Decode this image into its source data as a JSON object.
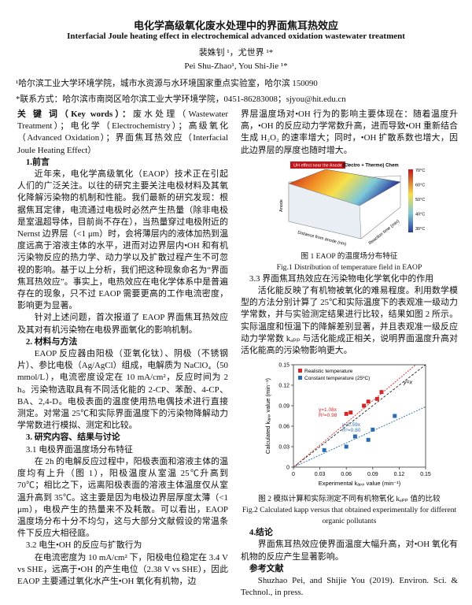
{
  "title": "电化学高级氧化废水处理中的界面焦耳热效应",
  "title_en": "Interfacial Joule heating effect in electrochemical advanced oxidation wastewater treatment",
  "authors": "裴姝钊 ¹，尤世界 ¹*",
  "authors_en": "Pei Shu-Zhao¹, You Shi-Jie ¹*",
  "affiliation": "¹哈尔滨工业大学环境学院，城市水资源与水环境国家重点实验室，哈尔滨 150090",
  "contact": "*联系方式：哈尔滨市南岗区哈尔滨工业大学环境学院，0451-86283008；sjyou@hit.edu.cn",
  "left_column": [
    {
      "label": "关 键 词（Key words）：",
      "text": "废水处理（Wastewater Treatment）；电化学（Electrochemistry）；高级氧化（Advanced Oxidation）；界面焦耳热效应（Interfacial Joule Heating Effect）"
    },
    {
      "heading": "1.前言"
    },
    {
      "paragraph": "近年来，电化学高级氧化（EAOP）技术正在引起人们的广泛关注。以往的研究主要关注电极材料及其氧化降解污染物的机制和性能。我们最新的研究发现：根据焦耳定律，电流通过电极时必然产生热量（除非电极是室温超导体，目前尚不存在），当热量穿过电极附近的 Nernst 边界层（<1 μm）时，会将薄层内的液体加热到温度远高于溶液主体的水平，进而对边界层内•OH 和有机污染物反应的热力学、动力学以及扩散过程产生不可忽视的影响。基于以上分析，我们把这种现象命名为“界面焦耳热效应”。事实上，电热效应在电化学体系中是普遍存在的现象，只不过 EAOP 需要更高的工作电流密度，影响更为显著。"
    },
    {
      "paragraph": "针对上述问题，首次报道了 EAOP 界面焦耳热效应及其对有机污染物在电极界面氧化的影响机制。"
    },
    {
      "heading": "2. 材料与方法"
    },
    {
      "paragraph": "EAOP 反应器由阳极（亚氧化钛）、阴极（不锈钢片）、参比电极（Ag/AgCl）组成，电解质为 NaClO₄（50 mmol/L），电流密度设定在 10 mA/cm²，反应时间为 2 h。污染物选取具有不同活化能的 2-CP、苯酚、4-CP、BA、2,4-D。电极表面的温度使用热电偶技术进行直接测定。对常温 25℃和实际界面温度下的污染物降解动力学常数进行模拟、测定和比较。"
    },
    {
      "heading": "3. 研究内容、结果与讨论"
    },
    {
      "subheading": "3.1 电极界面温度场分布特征"
    },
    {
      "paragraph": "在 2h 的电解反应过程中，阳极表面和溶液主体的温度均有上升（图 1），阳极温度从室温 25℃升高到 70℃；相比之下，远离阳极表面的溶液主体温度仅从室温升高到 35℃。这主要是因为电极边界层厚度太薄（<1 μm），电极产生的热量来不及耗散。可以看出，EAOP 温度场分布十分不均匀，这与大部分文献假设的常温条件下反应大相径庭。"
    },
    {
      "subheading": "3.2 电生•OH 的反应与扩散行为"
    },
    {
      "paragraph": "在电流密度为 10 mA/cm² 下，阳极电位稳定在 3.4 V vs SHE，远高于•OH 的产生电位（2.38 V vs SHE），因此 EAOP 主要通过氧化水产生•OH 氧化有机物，边"
    }
  ],
  "right_column": [
    {
      "paragraph": "界层温度场对•OH 行为的影响主要体现在：随着温度升高，•OH 的反应动力学常数升高，进而导致•OH 重新结合生成 H₂O₂ 的速率增大；同时，•OH 扩散系数也增大，因此边界层的厚度也随时增大。"
    },
    {
      "image": {
        "badge": "UH effect near the Anode",
        "corner": "(Electro + Thermo) Chem",
        "side": "Anode",
        "x_title": "Distance from anode (nm)",
        "y_title": "Reaction time (min)",
        "scale": [
          "70°C",
          "60°C",
          "50°C",
          "40°C",
          "30°C"
        ]
      },
      "caption": "图 1 EAOP 的温度场分布特征",
      "caption_en": "Fig.1 Distribution of temperature field in EAOP"
    },
    {
      "subheading": "3.3 界面焦耳热效应在污染物电化学氧化中的作用"
    },
    {
      "paragraph": "活化能反映了有机物被氧化的难易程度。利用数学模型的方法分别计算了 25℃和实际温度下的表观准一级动力学常数，并与实验测定结果进行比较，结果如图 2 所示。实际温度和恒温下的降解差别显著，并且表观准一级反应动力学常数 kₐₚₚ 与活化能成正相关，说明界面温度升高对活化能高的污染物影响更大。"
    },
    {
      "chart": {
        "type": "scatter",
        "x_label": "Experimental kₐₚₚ value (min⁻¹)",
        "y_label": "Calculated kₐₚₚ value (min⁻¹)",
        "xlim": [
          0,
          0.15
        ],
        "ylim": [
          0,
          0.15
        ],
        "xticks": [
          0,
          0.03,
          0.06,
          0.09,
          0.12,
          0.15
        ],
        "yticks": [
          0,
          0.03,
          0.06,
          0.09,
          0.12,
          0.15
        ],
        "series": [
          {
            "name": "Realistic temperature",
            "color": "#d62728",
            "x": [
              0.06,
              0.065,
              0.08,
              0.085,
              0.095,
              0.1
            ],
            "values": [
              0.078,
              0.08,
              0.09,
              0.096,
              0.1,
              0.11
            ],
            "fit": {
              "slope": 1.08,
              "equation": "y=1.08x",
              "r2": "R²=0.98"
            }
          },
          {
            "name": "Constant temperature (25ºC)",
            "color": "#2b6cb0",
            "x": [
              0.035,
              0.06,
              0.07,
              0.085,
              0.09,
              0.115
            ],
            "values": [
              0.025,
              0.03,
              0.045,
              0.04,
              0.055,
              0.075
            ],
            "fit": {
              "slope": 0.59,
              "equation": "y=0.59x",
              "r2": "R²=0.80"
            }
          }
        ],
        "reference": {
          "slope": 1,
          "label": "y=x"
        }
      },
      "caption": "图 2 模拟计算和实际测定不同有机物氧化 kₐₚₚ 值的比较",
      "caption_en": "Fig.2 Calculated kapp versus that obtained experimentally for different organic pollutants"
    },
    {
      "heading": "4.结论"
    },
    {
      "paragraph": "界面焦耳热效应使界面温度大幅升高，对•OH 氧化有机物的反应产生显著影响。"
    },
    {
      "heading": "参考文献"
    },
    {
      "paragraph": "Shuzhao Pei, and Shijie You (2019). Environ. Sci. & Technol., in press."
    }
  ]
}
